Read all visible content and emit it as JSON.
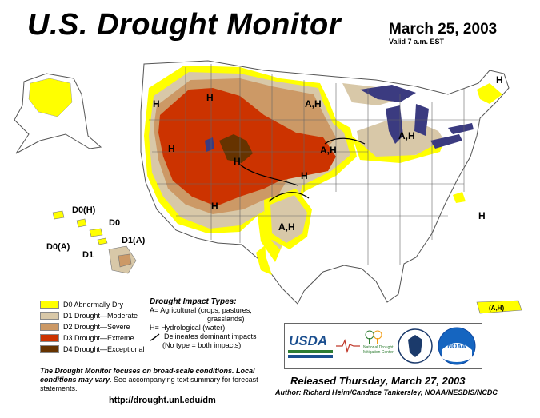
{
  "header": {
    "title": "U.S. Drought Monitor",
    "date": "March 25, 2003",
    "valid": "Valid 7 a.m. EST"
  },
  "colors": {
    "D0": "#ffff00",
    "D1": "#d8c8a8",
    "D2": "#cc9966",
    "D3": "#cc3300",
    "D4": "#663300",
    "water": "#3b3b80"
  },
  "map_labels": {
    "h_west": "H",
    "h_montana": "H",
    "h_wyoming": "H",
    "h_colorado": "H",
    "h_az": "H",
    "h_kansas": "H",
    "ah_dakota": "A,H",
    "ah_nebraska": "A,H",
    "ah_michigan": "A,H",
    "ah_texas": "A,H",
    "h_maine": "H",
    "h_east": "H",
    "hawaii_d0h": "D0(H)",
    "hawaii_d0": "D0",
    "hawaii_d0a": "D0(A)",
    "hawaii_d1a": "D1(A)",
    "hawaii_d1": "D1",
    "pr_ah": "(A,H)"
  },
  "legend": {
    "items": [
      {
        "key": "D0",
        "label": "D0 Abnormally Dry"
      },
      {
        "key": "D1",
        "label": "D1 Drought—Moderate"
      },
      {
        "key": "D2",
        "label": "D2 Drought—Severe"
      },
      {
        "key": "D3",
        "label": "D3 Drought—Extreme"
      },
      {
        "key": "D4",
        "label": "D4 Drought—Exceptional"
      }
    ]
  },
  "impacts": {
    "title": "Drought Impact Types:",
    "a": "A= Agricultural (crops, pastures,",
    "a2": "grasslands)",
    "h": "H= Hydrological (water)",
    "delineates": "Delineates dominant impacts",
    "none": "(No type = both impacts)"
  },
  "note": {
    "bold": "The Drought Monitor focuses on broad-scale conditions. Local conditions may vary",
    "rest": ". See accompanying text summary for forecast statements."
  },
  "url": "http://drought.unl.edu/dm",
  "released": "Released Thursday, March 27, 2003",
  "author": "Author:  Richard Heim/Candace Tankersley, NOAA/NESDIS/NCDC",
  "logos": {
    "usda": "USDA",
    "ndmc": "National Drought Mitigation Center",
    "noaa": "NOAA"
  }
}
